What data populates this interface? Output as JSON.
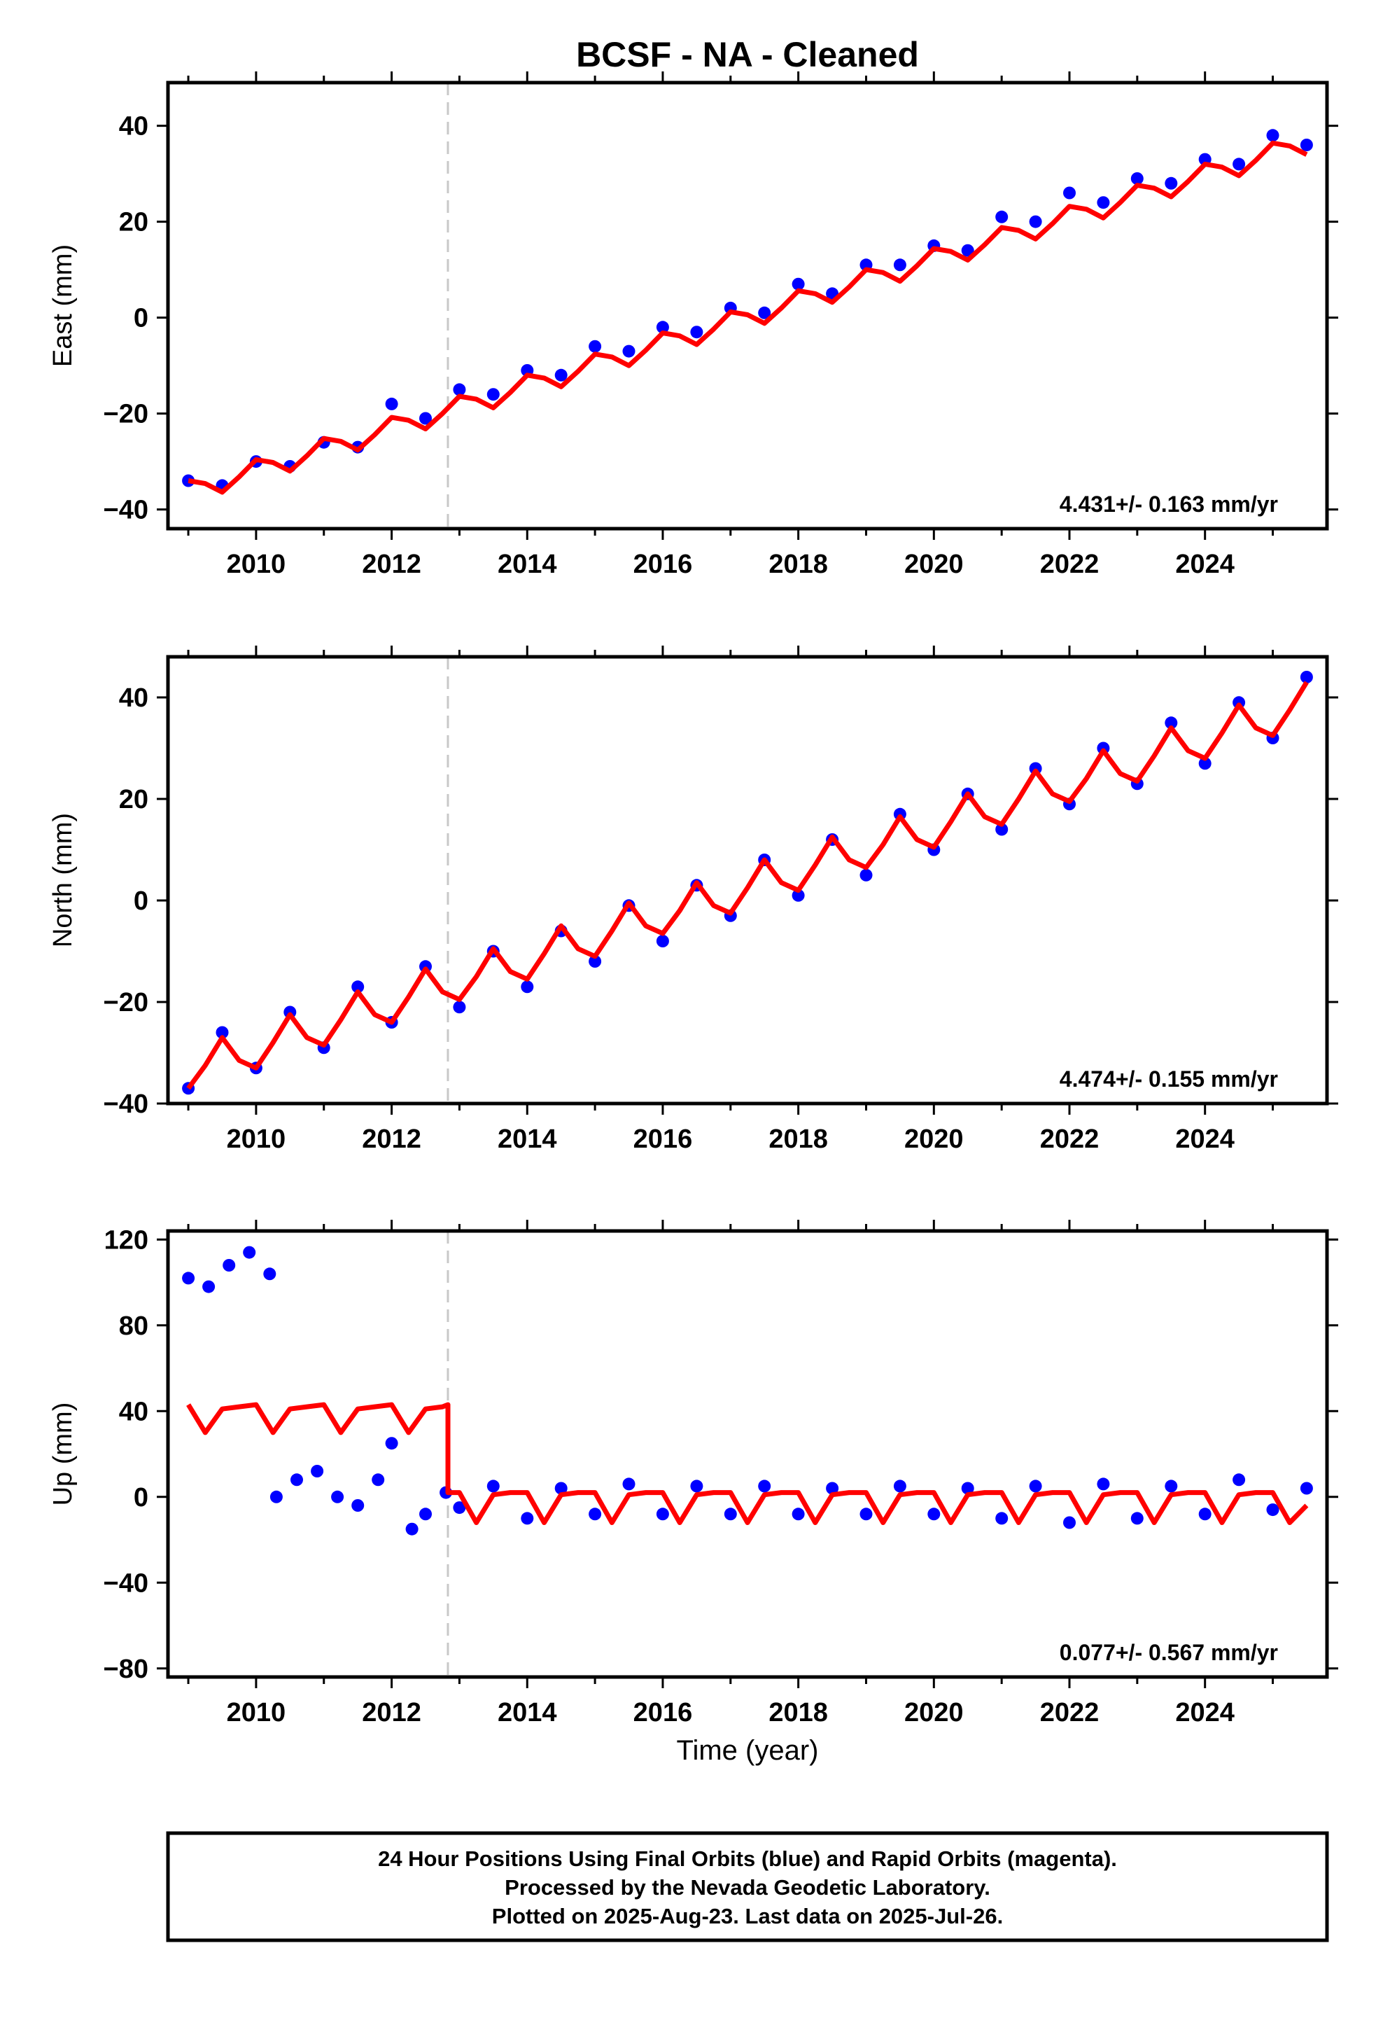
{
  "title": "BCSF  - NA - Cleaned",
  "xlabel": "Time (year)",
  "footer": {
    "line1": "24 Hour Positions Using Final Orbits (blue) and Rapid Orbits (magenta).",
    "line2": "Processed by the Nevada Geodetic Laboratory.",
    "line3": "Plotted on 2025-Aug-23. Last data on 2025-Jul-26."
  },
  "colors": {
    "data": "#0000ff",
    "model": "#ff0000",
    "event_line": "#c8c8c8",
    "frame": "#000000"
  },
  "chart_data": [
    {
      "type": "scatter",
      "component": "east",
      "ylabel": "East (mm)",
      "rate_label": "4.431+/- 0.163 mm/yr",
      "xlim": [
        2008.7,
        2025.8
      ],
      "ylim": [
        -44,
        49
      ],
      "xticks": [
        2010,
        2012,
        2014,
        2016,
        2018,
        2020,
        2022,
        2024
      ],
      "yticks": [
        -40,
        -20,
        0,
        20,
        40
      ],
      "event_x": 2012.83,
      "series": [
        {
          "role": "data",
          "x": [
            2009.0,
            2009.5,
            2010.0,
            2010.5,
            2011.0,
            2011.5,
            2012.0,
            2012.5,
            2013.0,
            2013.5,
            2014.0,
            2014.5,
            2015.0,
            2015.5,
            2016.0,
            2016.5,
            2017.0,
            2017.5,
            2018.0,
            2018.5,
            2019.0,
            2019.5,
            2020.0,
            2020.5,
            2021.0,
            2021.5,
            2022.0,
            2022.5,
            2023.0,
            2023.5,
            2024.0,
            2024.5,
            2025.0,
            2025.5
          ],
          "y": [
            -34,
            -35,
            -30,
            -31,
            -26,
            -27,
            -18,
            -21,
            -15,
            -16,
            -11,
            -12,
            -6,
            -7,
            -2,
            -3,
            2,
            1,
            7,
            5,
            11,
            11,
            15,
            14,
            21,
            20,
            26,
            24,
            29,
            28,
            33,
            32,
            38,
            36
          ]
        },
        {
          "role": "model",
          "x": [
            2009.0,
            2009.25,
            2009.5,
            2009.75,
            2010.0,
            2010.25,
            2010.5,
            2010.75,
            2011.0,
            2011.25,
            2011.5,
            2011.75,
            2012.0,
            2012.25,
            2012.5,
            2012.75,
            2013.0,
            2013.25,
            2013.5,
            2013.75,
            2014.0,
            2014.25,
            2014.5,
            2014.75,
            2015.0,
            2015.25,
            2015.5,
            2015.75,
            2016.0,
            2016.25,
            2016.5,
            2016.75,
            2017.0,
            2017.25,
            2017.5,
            2017.75,
            2018.0,
            2018.25,
            2018.5,
            2018.75,
            2019.0,
            2019.25,
            2019.5,
            2019.75,
            2020.0,
            2020.25,
            2020.5,
            2020.75,
            2021.0,
            2021.25,
            2021.5,
            2021.75,
            2022.0,
            2022.25,
            2022.5,
            2022.75,
            2023.0,
            2023.25,
            2023.5,
            2023.75,
            2024.0,
            2024.25,
            2024.5,
            2024.75,
            2025.0,
            2025.25,
            2025.5
          ],
          "y": [
            -34,
            -34.6,
            -36.4,
            -33.2,
            -29.6,
            -30.2,
            -32,
            -28.8,
            -25.2,
            -25.8,
            -27.6,
            -24.4,
            -20.8,
            -21.4,
            -23.2,
            -20,
            -16.4,
            -17,
            -18.8,
            -15.6,
            -12,
            -12.6,
            -14.4,
            -11.2,
            -7.6,
            -8.2,
            -10,
            -6.8,
            -3.2,
            -3.8,
            -5.6,
            -2.4,
            1.2,
            0.6,
            -1.2,
            2,
            5.6,
            5,
            3.2,
            6.4,
            10,
            9.4,
            7.6,
            10.8,
            14.4,
            13.8,
            12,
            15.2,
            18.8,
            18.2,
            16.4,
            19.6,
            23.2,
            22.6,
            20.8,
            24,
            27.6,
            27,
            25.2,
            28.4,
            32,
            31.4,
            29.6,
            32.8,
            36.4,
            35.8,
            34
          ]
        }
      ]
    },
    {
      "type": "scatter",
      "component": "north",
      "ylabel": "North (mm)",
      "rate_label": "4.474+/- 0.155 mm/yr",
      "xlim": [
        2008.7,
        2025.8
      ],
      "ylim": [
        -40,
        48
      ],
      "xticks": [
        2010,
        2012,
        2014,
        2016,
        2018,
        2020,
        2022,
        2024
      ],
      "yticks": [
        -40,
        -20,
        0,
        20,
        40
      ],
      "event_x": 2012.83,
      "series": [
        {
          "role": "data",
          "x": [
            2009.0,
            2009.5,
            2010.0,
            2010.5,
            2011.0,
            2011.5,
            2012.0,
            2012.5,
            2013.0,
            2013.5,
            2014.0,
            2014.5,
            2015.0,
            2015.5,
            2016.0,
            2016.5,
            2017.0,
            2017.5,
            2018.0,
            2018.5,
            2019.0,
            2019.5,
            2020.0,
            2020.5,
            2021.0,
            2021.5,
            2022.0,
            2022.5,
            2023.0,
            2023.5,
            2024.0,
            2024.5,
            2025.0,
            2025.5
          ],
          "y": [
            -37,
            -26,
            -33,
            -22,
            -29,
            -17,
            -24,
            -13,
            -21,
            -10,
            -17,
            -6,
            -12,
            -1,
            -8,
            3,
            -3,
            8,
            1,
            12,
            5,
            17,
            10,
            21,
            14,
            26,
            19,
            30,
            23,
            35,
            27,
            39,
            32,
            44
          ]
        },
        {
          "role": "model",
          "x": [
            2009.0,
            2009.25,
            2009.5,
            2009.75,
            2010.0,
            2010.25,
            2010.5,
            2010.75,
            2011.0,
            2011.25,
            2011.5,
            2011.75,
            2012.0,
            2012.25,
            2012.5,
            2012.75,
            2013.0,
            2013.25,
            2013.5,
            2013.75,
            2014.0,
            2014.25,
            2014.5,
            2014.75,
            2015.0,
            2015.25,
            2015.5,
            2015.75,
            2016.0,
            2016.25,
            2016.5,
            2016.75,
            2017.0,
            2017.25,
            2017.5,
            2017.75,
            2018.0,
            2018.25,
            2018.5,
            2018.75,
            2019.0,
            2019.25,
            2019.5,
            2019.75,
            2020.0,
            2020.25,
            2020.5,
            2020.75,
            2021.0,
            2021.25,
            2021.5,
            2021.75,
            2022.0,
            2022.25,
            2022.5,
            2022.75,
            2023.0,
            2023.25,
            2023.5,
            2023.75,
            2024.0,
            2024.25,
            2024.5,
            2024.75,
            2025.0,
            2025.25,
            2025.5
          ],
          "y": [
            -37,
            -32.5,
            -27,
            -31.5,
            -33,
            -28,
            -22.5,
            -27,
            -28.5,
            -23.5,
            -18,
            -22.5,
            -24,
            -19,
            -13.5,
            -18,
            -19.5,
            -15,
            -9.5,
            -14,
            -15.5,
            -10.5,
            -5,
            -9.5,
            -11,
            -6,
            -0.5,
            -5,
            -6.5,
            -2,
            3.5,
            -1,
            -2.5,
            2.5,
            8,
            3.5,
            2,
            7,
            12.5,
            8,
            6.5,
            11,
            16.5,
            12,
            10.5,
            15.5,
            21,
            16.5,
            15,
            20,
            25.5,
            21,
            19.5,
            24,
            29.5,
            25,
            23.5,
            28.5,
            34,
            29.5,
            28,
            33,
            38.5,
            34,
            32.5,
            37.5,
            43
          ]
        }
      ]
    },
    {
      "type": "scatter",
      "component": "up",
      "ylabel": "Up (mm)",
      "rate_label": "0.077+/- 0.567 mm/yr",
      "xlim": [
        2008.7,
        2025.8
      ],
      "ylim": [
        -84,
        124
      ],
      "xticks": [
        2010,
        2012,
        2014,
        2016,
        2018,
        2020,
        2022,
        2024
      ],
      "yticks": [
        -80,
        -40,
        0,
        40,
        80,
        120
      ],
      "event_x": 2012.83,
      "series": [
        {
          "role": "data",
          "x": [
            2009.0,
            2009.3,
            2009.6,
            2009.9,
            2010.2,
            2010.3,
            2010.6,
            2010.9,
            2011.2,
            2011.5,
            2011.8,
            2012.0,
            2012.3,
            2012.5,
            2012.8,
            2013.0,
            2013.5,
            2014.0,
            2014.5,
            2015.0,
            2015.5,
            2016.0,
            2016.5,
            2017.0,
            2017.5,
            2018.0,
            2018.5,
            2019.0,
            2019.5,
            2020.0,
            2020.5,
            2021.0,
            2021.5,
            2022.0,
            2022.5,
            2023.0,
            2023.5,
            2024.0,
            2024.5,
            2025.0,
            2025.5
          ],
          "y": [
            102,
            98,
            108,
            114,
            104,
            0,
            8,
            12,
            0,
            -4,
            8,
            25,
            -15,
            -8,
            2,
            -5,
            5,
            -10,
            4,
            -8,
            6,
            -8,
            5,
            -8,
            5,
            -8,
            4,
            -8,
            5,
            -8,
            4,
            -10,
            5,
            -12,
            6,
            -10,
            5,
            -8,
            8,
            -6,
            4
          ]
        },
        {
          "role": "model",
          "x": [
            2009.0,
            2009.25,
            2009.5,
            2009.75,
            2010.0,
            2010.25,
            2010.5,
            2010.75,
            2011.0,
            2011.25,
            2011.5,
            2011.75,
            2012.0,
            2012.25,
            2012.5,
            2012.75,
            2012.83,
            2013.0,
            2013.25,
            2013.5,
            2013.75,
            2014.0,
            2014.25,
            2014.5,
            2014.75,
            2015.0,
            2015.25,
            2015.5,
            2015.75,
            2016.0,
            2016.25,
            2016.5,
            2016.75,
            2017.0,
            2017.25,
            2017.5,
            2017.75,
            2018.0,
            2018.25,
            2018.5,
            2018.75,
            2019.0,
            2019.25,
            2019.5,
            2019.75,
            2020.0,
            2020.25,
            2020.5,
            2020.75,
            2021.0,
            2021.25,
            2021.5,
            2021.75,
            2022.0,
            2022.25,
            2022.5,
            2022.75,
            2023.0,
            2023.25,
            2023.5,
            2023.75,
            2024.0,
            2024.25,
            2024.5,
            2024.75,
            2025.0,
            2025.25,
            2025.5
          ],
          "y": [
            43,
            30,
            41,
            42,
            43,
            30,
            41,
            42,
            43,
            30,
            41,
            42,
            43,
            30,
            41,
            42,
            43,
            2,
            -12,
            1,
            2,
            2,
            -12,
            1,
            2,
            2,
            -12,
            1,
            2,
            2,
            -12,
            1,
            2,
            2,
            -12,
            1,
            2,
            2,
            -12,
            1,
            2,
            2,
            -12,
            1,
            2,
            2,
            -12,
            1,
            2,
            2,
            -12,
            1,
            2,
            2,
            -12,
            1,
            2,
            2,
            -12,
            1,
            2,
            2,
            -12,
            1,
            2,
            2,
            -12,
            -4
          ]
        }
      ]
    }
  ]
}
